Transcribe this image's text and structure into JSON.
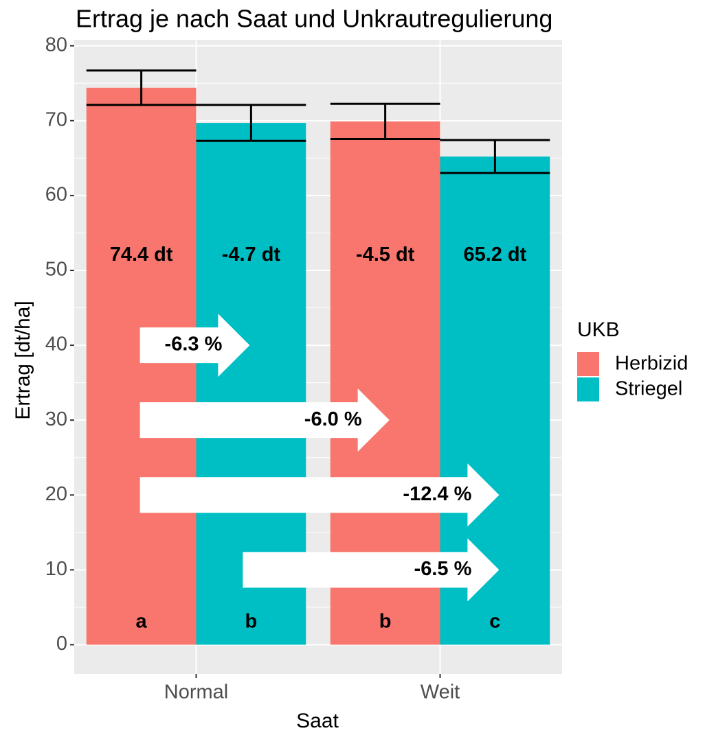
{
  "chart_data": {
    "type": "bar",
    "title": "Ertrag je nach Saat und Unkrautregulierung",
    "x_label": "Saat",
    "y_label": "Ertrag [dt/ha]",
    "categories": [
      "Normal",
      "Weit"
    ],
    "legend_title": "UKB",
    "series": [
      {
        "name": "Herbizid",
        "color": "#f8766d",
        "values": [
          74.4,
          69.9
        ],
        "errors": [
          2.3,
          2.35
        ],
        "value_labels": [
          "74.4 dt",
          "-4.5 dt"
        ],
        "letters": [
          "a",
          "b"
        ]
      },
      {
        "name": "Striegel",
        "color": "#00bfc4",
        "values": [
          69.7,
          65.2
        ],
        "errors": [
          2.4,
          2.2
        ],
        "value_labels": [
          "-4.7 dt",
          "65.2 dt"
        ],
        "letters": [
          "b",
          "c"
        ]
      }
    ],
    "arrows": [
      {
        "label": "-6.3 %",
        "y": 40
      },
      {
        "label": "-6.0 %",
        "y": 30
      },
      {
        "label": "-12.4 %",
        "y": 20
      },
      {
        "label": "-6.5 %",
        "y": 10
      }
    ],
    "ylim": [
      -3.9,
      80.8
    ],
    "yticks": [
      0,
      10,
      20,
      30,
      40,
      50,
      60,
      70,
      80
    ],
    "grid": true
  }
}
